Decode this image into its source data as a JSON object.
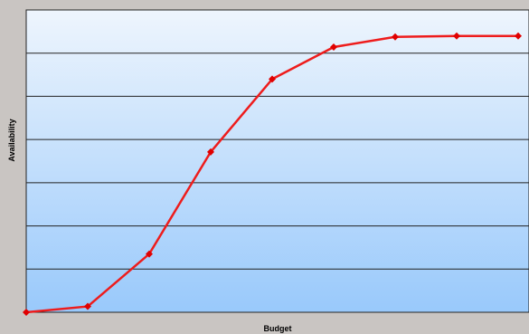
{
  "chart_data": {
    "type": "line",
    "title": "",
    "xlabel": "Budget",
    "ylabel": "Availability",
    "x": [
      1,
      2,
      3,
      4,
      5,
      6,
      7,
      8,
      9
    ],
    "series": [
      {
        "values": [
          0.0,
          2.0,
          20.0,
          55.0,
          80.0,
          91.0,
          94.5,
          94.8,
          94.8
        ]
      }
    ],
    "xlim": [
      1,
      9
    ],
    "ylim": [
      0,
      100
    ],
    "grid": "horizontal",
    "legend": "none",
    "colors": {
      "line": "#ee1c1c",
      "marker": "#e00000",
      "plot_top": "#eef5fd",
      "plot_bottom": "#99c9fb",
      "frame": "#222222",
      "background": "#c9c5c2"
    }
  }
}
